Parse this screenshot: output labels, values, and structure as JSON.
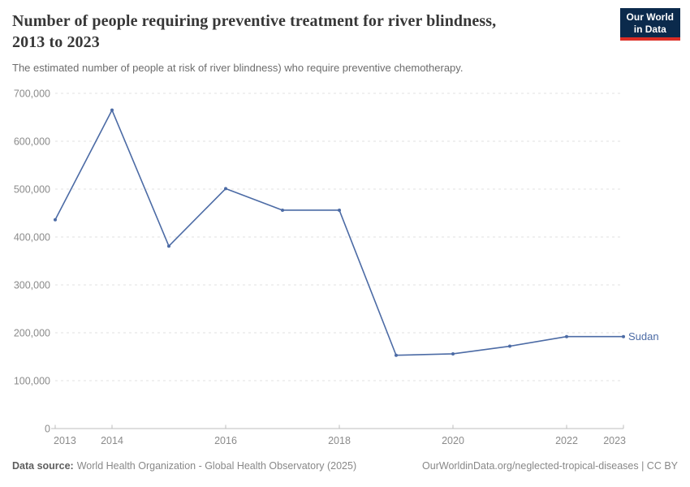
{
  "header": {
    "title": "Number of people requiring preventive treatment for river blindness,\n2013 to 2023",
    "subtitle": "The estimated number of people at risk of river blindness) who require preventive chemotherapy.",
    "logo": {
      "line1": "Our World",
      "line2": "in Data"
    }
  },
  "chart_data": {
    "type": "line",
    "title": "Number of people requiring preventive treatment for river blindness, 2013 to 2023",
    "x": [
      2013,
      2014,
      2015,
      2016,
      2017,
      2018,
      2019,
      2020,
      2021,
      2022,
      2023
    ],
    "series": [
      {
        "name": "Sudan",
        "color": "#4c6ba5",
        "values": [
          436000,
          665000,
          381000,
          501000,
          456000,
          456000,
          153000,
          156000,
          172000,
          192000,
          192000
        ]
      }
    ],
    "ylim": [
      0,
      700000
    ],
    "yticks": [
      0,
      100000,
      200000,
      300000,
      400000,
      500000,
      600000,
      700000
    ],
    "xtick_labels": [
      2013,
      2014,
      2016,
      2018,
      2020,
      2022,
      2023
    ],
    "xlabel": "",
    "ylabel": "",
    "grid": "horizontal-dashed",
    "legend_position": "end-of-line-label"
  },
  "colors": {
    "line": "#4c6ba5",
    "axis_text": "#8b8b8b",
    "axis_line": "#bdbdbd",
    "grid": "#e2e2e2",
    "logo_bg": "#0b2a4c",
    "logo_red": "#dc2d25"
  },
  "footer": {
    "source_label": "Data source:",
    "source_text": "World Health Organization - Global Health Observatory (2025)",
    "link_text": "OurWorldinData.org/neglected-tropical-diseases | CC BY"
  }
}
